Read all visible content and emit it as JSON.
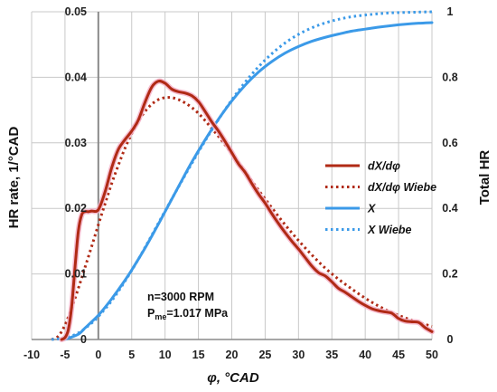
{
  "chart_data": {
    "type": "line",
    "title": "",
    "xlabel": "φ, °CAD",
    "ylabel": "HR rate, 1/°CAD",
    "y2label": "Total HR",
    "xlim": [
      -10,
      50
    ],
    "ylim": [
      0,
      0.05
    ],
    "y2lim": [
      0,
      1
    ],
    "x_ticks": [
      "-10",
      "-5",
      "0",
      "5",
      "10",
      "15",
      "20",
      "25",
      "30",
      "35",
      "40",
      "45",
      "50"
    ],
    "y_ticks": [
      "0",
      "0.01",
      "0.02",
      "0.03",
      "0.04",
      "0.05"
    ],
    "y2_ticks": [
      "0",
      "0.2",
      "0.4",
      "0.6",
      "0.8",
      "1"
    ],
    "grid": true,
    "legend_position": "right",
    "annotations": {
      "line1": "n=3000 RPM",
      "line2_main": "P",
      "line2_sub": "me",
      "line2_rest": "=1.017 MPa"
    },
    "series": [
      {
        "name": "dX/dφ",
        "axis": "left",
        "color": "#b02a15",
        "style": "solid",
        "x": [
          -5.5,
          -5,
          -4.5,
          -4,
          -3.5,
          -3,
          -2.5,
          -2,
          -1.5,
          -1,
          0,
          1,
          2,
          3,
          4,
          5,
          6,
          7,
          8,
          9,
          10,
          11,
          12,
          13,
          14,
          15,
          16,
          17,
          18,
          19,
          20,
          21,
          22,
          23,
          24,
          25,
          26,
          27,
          28,
          29,
          30,
          31,
          32,
          33,
          34,
          35,
          36,
          37,
          38,
          39,
          40,
          41,
          42,
          43,
          44,
          45,
          46,
          47,
          48,
          49,
          50
        ],
        "values": [
          0,
          0.0003,
          0.0015,
          0.005,
          0.011,
          0.0165,
          0.019,
          0.0195,
          0.0195,
          0.0196,
          0.0198,
          0.0225,
          0.0262,
          0.029,
          0.0305,
          0.0318,
          0.0335,
          0.0362,
          0.0385,
          0.0394,
          0.0391,
          0.0382,
          0.0378,
          0.0376,
          0.0372,
          0.0363,
          0.0348,
          0.0332,
          0.0318,
          0.0302,
          0.0285,
          0.0268,
          0.0255,
          0.0238,
          0.0222,
          0.0208,
          0.0192,
          0.0177,
          0.0163,
          0.015,
          0.0138,
          0.0125,
          0.0112,
          0.0102,
          0.0097,
          0.0088,
          0.0078,
          0.0072,
          0.0065,
          0.0058,
          0.0052,
          0.0047,
          0.0044,
          0.0042,
          0.004,
          0.0032,
          0.0028,
          0.0027,
          0.0026,
          0.0018,
          0.0012
        ]
      },
      {
        "name": "dX/dφ Wiebe",
        "axis": "left",
        "color": "#b02a15",
        "style": "dotted",
        "x": [
          -7,
          -6,
          -5,
          -4,
          -3,
          -2,
          -1,
          0,
          1,
          2,
          3,
          4,
          5,
          6,
          7,
          8,
          9,
          10,
          11,
          12,
          13,
          14,
          15,
          16,
          17,
          18,
          19,
          20,
          22,
          24,
          26,
          28,
          30,
          32,
          34,
          36,
          38,
          40,
          42,
          44,
          46,
          48,
          50
        ],
        "values": [
          0,
          0.0005,
          0.0022,
          0.0048,
          0.0078,
          0.011,
          0.0142,
          0.0175,
          0.0207,
          0.0238,
          0.0266,
          0.0292,
          0.0314,
          0.0333,
          0.0348,
          0.0359,
          0.0366,
          0.0369,
          0.0369,
          0.0366,
          0.0361,
          0.0354,
          0.0345,
          0.0334,
          0.0322,
          0.031,
          0.0297,
          0.0284,
          0.0256,
          0.0228,
          0.0201,
          0.0175,
          0.0151,
          0.0129,
          0.0109,
          0.0092,
          0.0077,
          0.0063,
          0.0051,
          0.0041,
          0.0033,
          0.0026,
          0.002
        ]
      },
      {
        "name": "X",
        "axis": "right",
        "color": "#3b9ae8",
        "style": "solid",
        "x": [
          -5,
          -3,
          -2,
          -1,
          0,
          1,
          2,
          3,
          4,
          5,
          6,
          7,
          8,
          9,
          10,
          12,
          14,
          16,
          18,
          20,
          22,
          24,
          26,
          28,
          30,
          32,
          34,
          36,
          38,
          40,
          42,
          44,
          46,
          48,
          50
        ],
        "values": [
          0,
          0.016,
          0.035,
          0.054,
          0.074,
          0.098,
          0.124,
          0.152,
          0.181,
          0.212,
          0.245,
          0.279,
          0.315,
          0.352,
          0.39,
          0.466,
          0.541,
          0.609,
          0.672,
          0.728,
          0.776,
          0.816,
          0.848,
          0.874,
          0.894,
          0.91,
          0.922,
          0.932,
          0.941,
          0.947,
          0.953,
          0.958,
          0.962,
          0.965,
          0.967
        ]
      },
      {
        "name": "X Wiebe",
        "axis": "right",
        "color": "#3b9ae8",
        "style": "dotted",
        "x": [
          -7,
          -5,
          -3,
          -1,
          0,
          2,
          4,
          6,
          8,
          10,
          12,
          14,
          16,
          18,
          20,
          22,
          24,
          26,
          28,
          30,
          32,
          34,
          36,
          38,
          40,
          42,
          44,
          46,
          48,
          50
        ],
        "values": [
          0,
          0.005,
          0.02,
          0.05,
          0.07,
          0.118,
          0.178,
          0.245,
          0.318,
          0.392,
          0.465,
          0.537,
          0.606,
          0.671,
          0.731,
          0.785,
          0.832,
          0.872,
          0.905,
          0.931,
          0.951,
          0.966,
          0.977,
          0.985,
          0.99,
          0.994,
          0.997,
          0.998,
          0.999,
          1.0
        ]
      }
    ]
  }
}
